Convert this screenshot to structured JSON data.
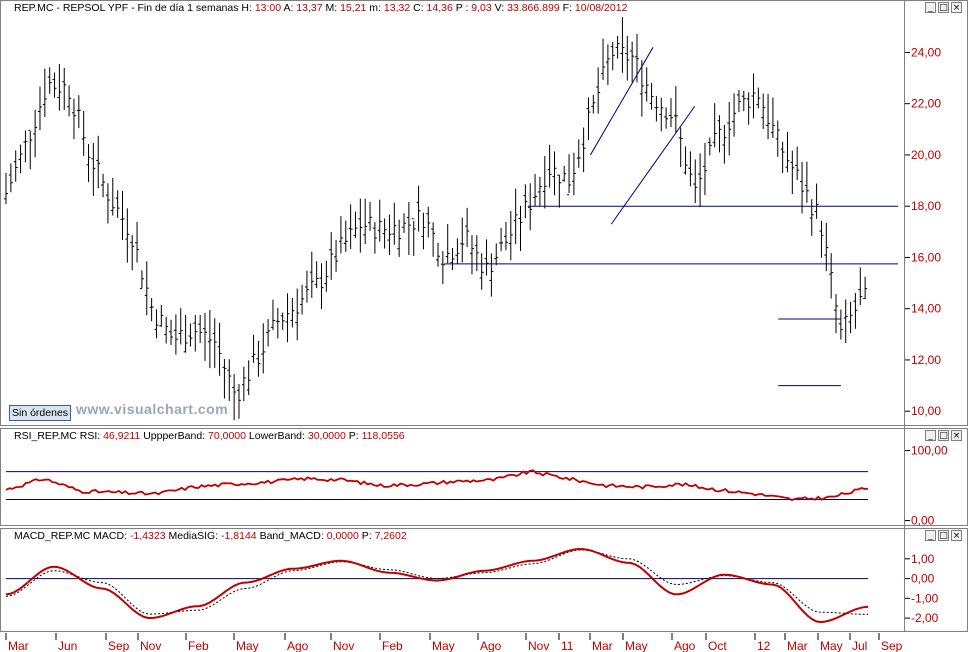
{
  "header": {
    "symbol": "REP.MC - REPSOL YPF - Fin de día 1 semanas",
    "h_label": "H:",
    "h_value": "13:00",
    "a_label": "A:",
    "a_value": "13,37",
    "m_label": "M:",
    "m_value": "15,21",
    "mm_label": "m:",
    "mm_value": "13,32",
    "c_label": "C:",
    "c_value": "14,36",
    "p_label": "P :",
    "p_value": "9,03",
    "vol_label": "V:",
    "vol_value": "33.866.899",
    "f_label": "F:",
    "f_value": "10/08/2012"
  },
  "rsi_header": {
    "name": "RSI_REP.MC",
    "rsi_label": "RSI:",
    "rsi_value": "46,9211",
    "upper_label": "UppperBand:",
    "upper_value": "70,0000",
    "lower_label": "LowerBand:",
    "lower_value": "30,0000",
    "p_label": "P:",
    "p_value": "118,0556"
  },
  "macd_header": {
    "name": "MACD_REP.MC",
    "macd_label": "MACD:",
    "macd_value": "-1,4323",
    "sig_label": "MediaSIG:",
    "sig_value": "-1,8144",
    "band_label": "Band_MACD:",
    "band_value": "0,0000",
    "p_label": "P:",
    "p_value": "7,2602"
  },
  "badge": "Sin órdenes",
  "watermark": "www.visualchart.com",
  "window_buttons": [
    "_",
    "□",
    "×"
  ],
  "colors": {
    "price": "#000000",
    "line": "#c00000",
    "signal": "#000000",
    "band": "#00007f",
    "axis_text": "#c00000"
  },
  "chart_data": [
    {
      "type": "ohlc",
      "y_range": [
        9.5,
        25.5
      ],
      "y_ticks": [
        "10,00",
        "12,00",
        "14,00",
        "16,00",
        "18,00",
        "20,00",
        "22,00",
        "24,00"
      ],
      "horizontal_lines": [
        18.0,
        15.75
      ],
      "channel_lines": [
        {
          "from": [
            "Jul 2011",
            20.0
          ],
          "to": [
            "Oct 2011",
            24.2
          ]
        },
        {
          "from": [
            "Aug 2011",
            17.3
          ],
          "to": [
            "Dec 2011",
            21.9
          ]
        }
      ],
      "range_box": {
        "top": 13.6,
        "bottom": 11.0,
        "from": "Apr 2012",
        "to": "Jul 2012"
      },
      "close_path": [
        {
          "x": "Mar 2009",
          "y": 18.5
        },
        {
          "x": "Apr 2009",
          "y": 20.5
        },
        {
          "x": "May 2009",
          "y": 22.8
        },
        {
          "x": "Jun 2009",
          "y": 22.6
        },
        {
          "x": "Jul 2009",
          "y": 20.0
        },
        {
          "x": "Aug 2009",
          "y": 18.3
        },
        {
          "x": "Sep 2009",
          "y": 17.0
        },
        {
          "x": "Oct 2009",
          "y": 14.0
        },
        {
          "x": "Nov 2009",
          "y": 12.8
        },
        {
          "x": "Dec 2009",
          "y": 13.2
        },
        {
          "x": "Jan 2010",
          "y": 12.7
        },
        {
          "x": "Feb 2010",
          "y": 10.6
        },
        {
          "x": "Mar 2010",
          "y": 12.0
        },
        {
          "x": "Apr 2010",
          "y": 13.5
        },
        {
          "x": "May 2010",
          "y": 14.2
        },
        {
          "x": "Jun 2010",
          "y": 15.0
        },
        {
          "x": "Jul 2010",
          "y": 16.3
        },
        {
          "x": "Aug 2010",
          "y": 17.3
        },
        {
          "x": "Sep 2010",
          "y": 17.1
        },
        {
          "x": "Oct 2010",
          "y": 17.2
        },
        {
          "x": "Nov 2010",
          "y": 17.6
        },
        {
          "x": "Dec 2010",
          "y": 16.0
        },
        {
          "x": "Jan 2011",
          "y": 16.8
        },
        {
          "x": "Feb 2011",
          "y": 15.5
        },
        {
          "x": "Mar 2011",
          "y": 16.7
        },
        {
          "x": "Apr 2011",
          "y": 18.0
        },
        {
          "x": "May 2011",
          "y": 19.5
        },
        {
          "x": "Jun 2011",
          "y": 19.0
        },
        {
          "x": "Jul 2011",
          "y": 21.5
        },
        {
          "x": "Aug 2011",
          "y": 24.0
        },
        {
          "x": "Sep 2011",
          "y": 23.8
        },
        {
          "x": "Oct 2011",
          "y": 22.3
        },
        {
          "x": "Nov 2011",
          "y": 21.5
        },
        {
          "x": "Dec 2011",
          "y": 18.5
        },
        {
          "x": "Jan 2012",
          "y": 20.5
        },
        {
          "x": "Feb 2012",
          "y": 21.8
        },
        {
          "x": "Mar 2012",
          "y": 22.5
        },
        {
          "x": "Apr 2012",
          "y": 20.5
        },
        {
          "x": "May 2012",
          "y": 19.0
        },
        {
          "x": "Jun 2012",
          "y": 17.5
        },
        {
          "x": "Jul 2012",
          "y": 13.0
        },
        {
          "x": "Aug 2012",
          "y": 14.36
        }
      ]
    },
    {
      "type": "line",
      "y_range": [
        -5,
        108
      ],
      "y_ticks": [
        "100,00",
        "0,00"
      ],
      "bands": [
        70,
        30
      ],
      "series": [
        {
          "values": [
            44,
            60,
            42,
            40,
            38,
            48,
            52,
            55,
            60,
            58,
            50,
            52,
            56,
            58,
            70,
            60,
            50,
            48,
            52,
            44,
            38,
            30,
            33,
            47
          ]
        }
      ]
    },
    {
      "type": "line",
      "y_range": [
        -2.5,
        1.8
      ],
      "y_ticks": [
        "1,00",
        "0,00",
        "-1,00",
        "-2,00"
      ],
      "band": 0,
      "series": [
        {
          "values": [
            -0.8,
            0.6,
            -0.5,
            -2.0,
            -1.4,
            -0.2,
            0.5,
            0.9,
            0.3,
            -0.1,
            0.4,
            0.9,
            1.5,
            0.8,
            -0.8,
            0.2,
            -0.3,
            -2.2,
            -1.43
          ]
        },
        {
          "values": [
            -0.9,
            0.4,
            -0.2,
            -1.8,
            -1.6,
            -0.5,
            0.4,
            0.85,
            0.45,
            0.0,
            0.3,
            0.75,
            1.45,
            1.0,
            -0.3,
            0.15,
            -0.2,
            -1.7,
            -1.81
          ]
        }
      ]
    }
  ],
  "x_axis": [
    "Mar",
    "Jun",
    "Sep",
    "Nov",
    "Feb",
    "May",
    "Ago",
    "Nov",
    "Feb",
    "May",
    "Ago",
    "Nov",
    "11",
    "Mar",
    "May",
    "Ago",
    "Oct",
    "12",
    "Mar",
    "May",
    "Jul",
    "Sep"
  ]
}
